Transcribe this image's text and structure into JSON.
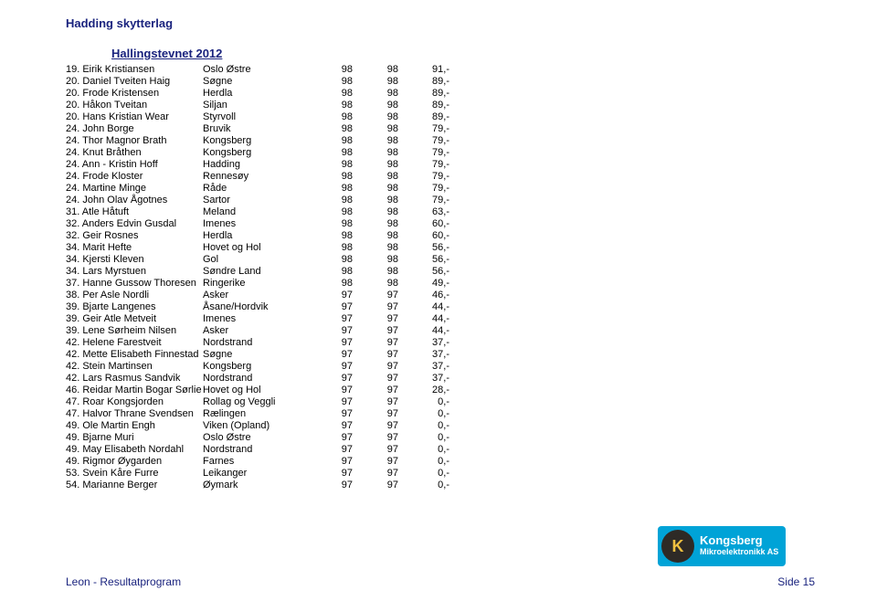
{
  "header": {
    "org": "Hadding skytterlag",
    "event": "Hallingstevnet 2012"
  },
  "footer": {
    "left": "Leon - Resultatprogram",
    "right": "Side 15"
  },
  "logo": {
    "k": "K",
    "line1": "Kongsberg",
    "line2": "Mikroelektronikk AS"
  },
  "columns": [
    "rank_name",
    "club",
    "s1",
    "s2",
    "s3"
  ],
  "rows": [
    [
      "19. Eirik Kristiansen",
      "Oslo Østre",
      "98",
      "98",
      "91,-"
    ],
    [
      "20. Daniel Tveiten Haig",
      "Søgne",
      "98",
      "98",
      "89,-"
    ],
    [
      "20. Frode Kristensen",
      "Herdla",
      "98",
      "98",
      "89,-"
    ],
    [
      "20. Håkon Tveitan",
      "Siljan",
      "98",
      "98",
      "89,-"
    ],
    [
      "20. Hans Kristian Wear",
      "Styrvoll",
      "98",
      "98",
      "89,-"
    ],
    [
      "24. John Borge",
      "Bruvik",
      "98",
      "98",
      "79,-"
    ],
    [
      "24. Thor Magnor Brath",
      "Kongsberg",
      "98",
      "98",
      "79,-"
    ],
    [
      "24. Knut Bråthen",
      "Kongsberg",
      "98",
      "98",
      "79,-"
    ],
    [
      "24. Ann - Kristin Hoff",
      "Hadding",
      "98",
      "98",
      "79,-"
    ],
    [
      "24. Frode Kloster",
      "Rennesøy",
      "98",
      "98",
      "79,-"
    ],
    [
      "24. Martine Minge",
      "Råde",
      "98",
      "98",
      "79,-"
    ],
    [
      "24. John Olav Ågotnes",
      "Sartor",
      "98",
      "98",
      "79,-"
    ],
    [
      "31. Atle Håtuft",
      "Meland",
      "98",
      "98",
      "63,-"
    ],
    [
      "32. Anders Edvin Gusdal",
      "Imenes",
      "98",
      "98",
      "60,-"
    ],
    [
      "32. Geir Rosnes",
      "Herdla",
      "98",
      "98",
      "60,-"
    ],
    [
      "34. Marit Hefte",
      "Hovet og Hol",
      "98",
      "98",
      "56,-"
    ],
    [
      "34. Kjersti Kleven",
      "Gol",
      "98",
      "98",
      "56,-"
    ],
    [
      "34. Lars Myrstuen",
      "Søndre Land",
      "98",
      "98",
      "56,-"
    ],
    [
      "37. Hanne Gussow Thoresen",
      "Ringerike",
      "98",
      "98",
      "49,-"
    ],
    [
      "38. Per Asle Nordli",
      "Asker",
      "97",
      "97",
      "46,-"
    ],
    [
      "39. Bjarte Langenes",
      "Åsane/Hordvik",
      "97",
      "97",
      "44,-"
    ],
    [
      "39. Geir Atle Metveit",
      "Imenes",
      "97",
      "97",
      "44,-"
    ],
    [
      "39. Lene Sørheim Nilsen",
      "Asker",
      "97",
      "97",
      "44,-"
    ],
    [
      "42. Helene Farestveit",
      "Nordstrand",
      "97",
      "97",
      "37,-"
    ],
    [
      "42. Mette Elisabeth Finnestad",
      "Søgne",
      "97",
      "97",
      "37,-"
    ],
    [
      "42. Stein Martinsen",
      "Kongsberg",
      "97",
      "97",
      "37,-"
    ],
    [
      "42. Lars Rasmus Sandvik",
      "Nordstrand",
      "97",
      "97",
      "37,-"
    ],
    [
      "46. Reidar Martin Bogar Sørlie",
      "Hovet og Hol",
      "97",
      "97",
      "28,-"
    ],
    [
      "47. Roar Kongsjorden",
      "Rollag og Veggli",
      "97",
      "97",
      "0,-"
    ],
    [
      "47. Halvor Thrane Svendsen",
      "Rælingen",
      "97",
      "97",
      "0,-"
    ],
    [
      "49. Ole Martin Engh",
      "Viken (Opland)",
      "97",
      "97",
      "0,-"
    ],
    [
      "49. Bjarne Muri",
      "Oslo Østre",
      "97",
      "97",
      "0,-"
    ],
    [
      "49. May Elisabeth Nordahl",
      "Nordstrand",
      "97",
      "97",
      "0,-"
    ],
    [
      "49. Rigmor Øygarden",
      "Farnes",
      "97",
      "97",
      "0,-"
    ],
    [
      "53. Svein Kåre Furre",
      "Leikanger",
      "97",
      "97",
      "0,-"
    ],
    [
      "54. Marianne Berger",
      "Øymark",
      "97",
      "97",
      "0,-"
    ]
  ]
}
